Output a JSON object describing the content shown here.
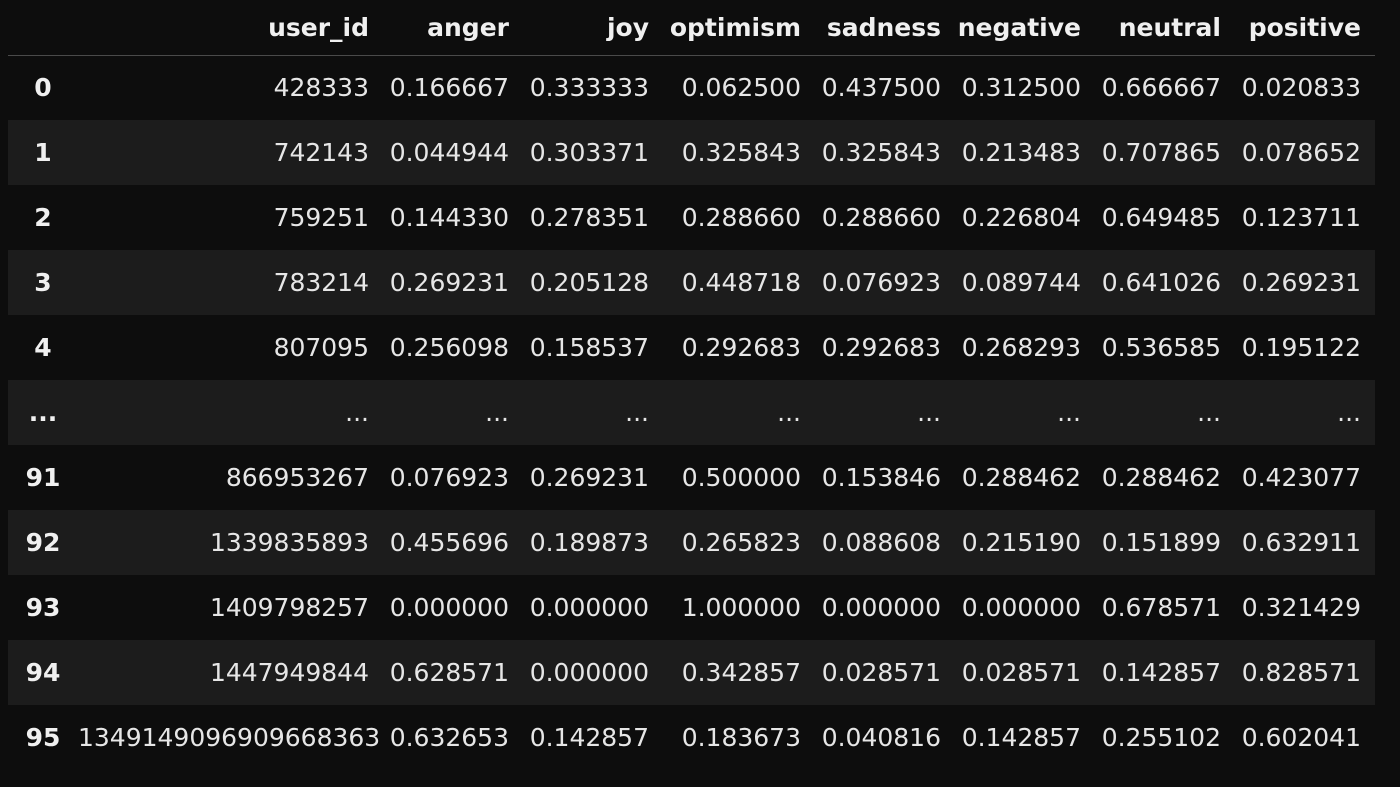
{
  "table": {
    "columns": [
      "",
      "user_id",
      "anger",
      "joy",
      "optimism",
      "sadness",
      "negative",
      "neutral",
      "positive"
    ],
    "rows": [
      [
        "0",
        "428333",
        "0.166667",
        "0.333333",
        "0.062500",
        "0.437500",
        "0.312500",
        "0.666667",
        "0.020833"
      ],
      [
        "1",
        "742143",
        "0.044944",
        "0.303371",
        "0.325843",
        "0.325843",
        "0.213483",
        "0.707865",
        "0.078652"
      ],
      [
        "2",
        "759251",
        "0.144330",
        "0.278351",
        "0.288660",
        "0.288660",
        "0.226804",
        "0.649485",
        "0.123711"
      ],
      [
        "3",
        "783214",
        "0.269231",
        "0.205128",
        "0.448718",
        "0.076923",
        "0.089744",
        "0.641026",
        "0.269231"
      ],
      [
        "4",
        "807095",
        "0.256098",
        "0.158537",
        "0.292683",
        "0.292683",
        "0.268293",
        "0.536585",
        "0.195122"
      ],
      [
        "...",
        "...",
        "...",
        "...",
        "...",
        "...",
        "...",
        "...",
        "..."
      ],
      [
        "91",
        "866953267",
        "0.076923",
        "0.269231",
        "0.500000",
        "0.153846",
        "0.288462",
        "0.288462",
        "0.423077"
      ],
      [
        "92",
        "1339835893",
        "0.455696",
        "0.189873",
        "0.265823",
        "0.088608",
        "0.215190",
        "0.151899",
        "0.632911"
      ],
      [
        "93",
        "1409798257",
        "0.000000",
        "0.000000",
        "1.000000",
        "0.000000",
        "0.000000",
        "0.678571",
        "0.321429"
      ],
      [
        "94",
        "1447949844",
        "0.628571",
        "0.000000",
        "0.342857",
        "0.028571",
        "0.028571",
        "0.142857",
        "0.828571"
      ],
      [
        "95",
        "1349149096909668363",
        "0.632653",
        "0.142857",
        "0.183673",
        "0.040816",
        "0.142857",
        "0.255102",
        "0.602041"
      ]
    ]
  },
  "colors": {
    "background": "#0d0d0d",
    "row_stripe": "#1c1c1c",
    "text": "#e6e6e6",
    "header_rule": "#4a4a4a"
  }
}
